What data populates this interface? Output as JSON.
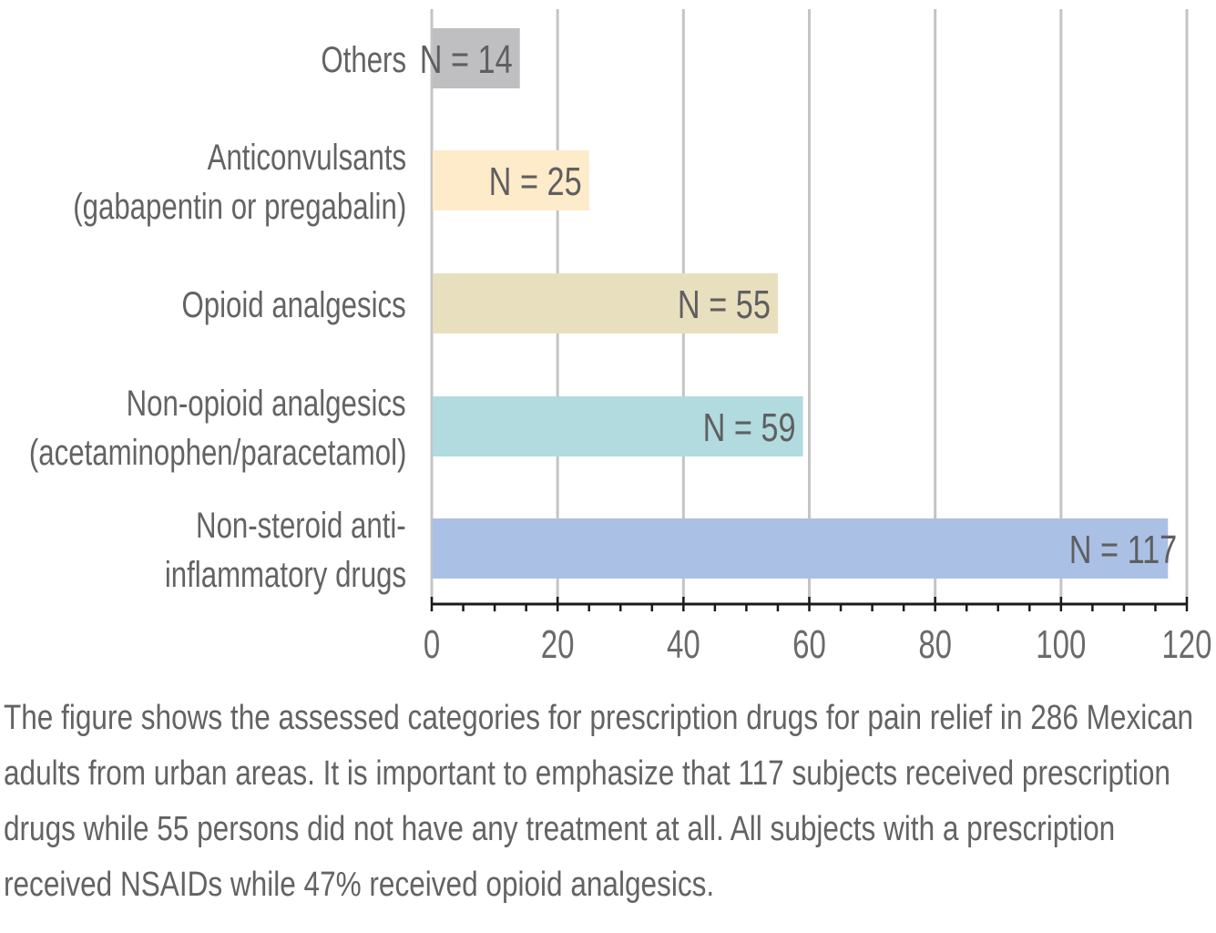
{
  "chart_data": {
    "type": "bar",
    "orientation": "horizontal",
    "categories": [
      "Others",
      "Anticonvulsants (gabapentin or pregabalin)",
      "Opioid analgesics",
      "Non-opioid analgesics (acetaminophen/paracetamol)",
      "Non-steroid anti-inflammatory drugs"
    ],
    "category_lines": [
      [
        "Others"
      ],
      [
        "Anticonvulsants",
        "(gabapentin or pregabalin)"
      ],
      [
        "Opioid analgesics"
      ],
      [
        "Non-opioid analgesics",
        "(acetaminophen/paracetamol)"
      ],
      [
        "Non-steroid anti-",
        "inflammatory drugs"
      ]
    ],
    "values": [
      14,
      25,
      55,
      59,
      117
    ],
    "data_labels": [
      "N = 14",
      "N = 25",
      "N = 55",
      "N = 59",
      "N = 117"
    ],
    "colors": [
      "#bfbfc1",
      "#fdebc9",
      "#e8dfbe",
      "#b2dbdf",
      "#abc0e5"
    ],
    "xlim": [
      0,
      120
    ],
    "xticks": [
      0,
      20,
      40,
      60,
      80,
      100,
      120
    ],
    "xtick_labels": [
      "0",
      "20",
      "40",
      "60",
      "80",
      "100",
      "120"
    ],
    "minor_tick_step": 5,
    "grid": true,
    "title": "",
    "xlabel": "",
    "ylabel": "",
    "legend": "none"
  },
  "caption": {
    "lines": [
      "The figure shows the assessed categories for prescription drugs for pain relief in 286 Mexican",
      "adults from urban areas. It is important to emphasize that 117 subjects received prescription",
      "drugs while 55 persons did not have any treatment at all. All subjects with a prescription",
      "received NSAIDs while 47% received opioid analgesics."
    ]
  }
}
